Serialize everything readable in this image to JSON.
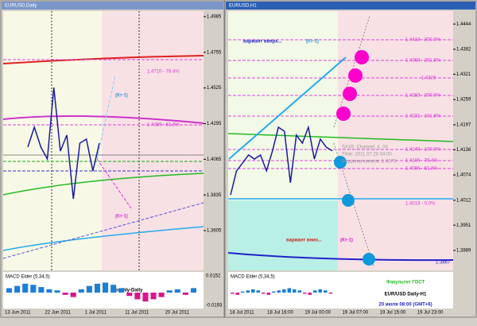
{
  "left_window": {
    "title": "EURUSD,Daily",
    "ylim": [
      1.34,
      1.5
    ],
    "yticks": [
      1.4985,
      1.4755,
      1.4525,
      1.4295,
      1.4065,
      1.3835,
      1.3605
    ],
    "price": [
      1.4144,
      1.4272,
      1.4144,
      1.4067,
      1.4528,
      1.4118,
      1.4221,
      1.381,
      1.4169,
      1.4195,
      1.399,
      1.4169
    ],
    "levels": [
      "1.4710 - 76.4%",
      "1.4389 - 61.8%"
    ],
    "annotations": [
      "(Кт-1)",
      "(Кт-1)"
    ],
    "caption": "Monthly-Daily",
    "macd_label": "MACD Elder (5,34,5)",
    "macd_ticks": [
      0.0152,
      -0.0193
    ],
    "macd": [
      0.004,
      0.006,
      0.008,
      0.007,
      0.005,
      0.003,
      0.002,
      -0.002,
      -0.004,
      0.003,
      0.006,
      0.008,
      0.009,
      0.007,
      0.004,
      -0.003,
      -0.006,
      -0.008,
      -0.006,
      -0.004,
      0.002,
      0.003,
      -0.002,
      0.004
    ],
    "dates": [
      "13 Jun 2011",
      "22 Jun 2011",
      "1 Jul 2011",
      "11 Jul 2011",
      "20 Jul 2011"
    ]
  },
  "right_window": {
    "title": "EURUSD,H1",
    "ylim": [
      1.385,
      1.446
    ],
    "yticks": [
      1.4444,
      1.4382,
      1.4321,
      1.4259,
      1.4197,
      1.4136,
      1.4074,
      1.4012,
      1.3951,
      1.3889
    ],
    "price": [
      1.4025,
      1.4084,
      1.4103,
      1.4123,
      1.4113,
      1.4123,
      1.4084,
      1.4133,
      1.4191,
      1.4181,
      1.4055,
      1.4172,
      1.4152,
      1.4191,
      1.4113,
      1.4162,
      1.4142,
      1.4133
    ],
    "levels": [
      "1.4418 - 300.0%",
      "1.4368 - 261.8%",
      "1.4326",
      "1.4283 - 200.0%",
      "1.4231 - 161.8%",
      "1.4148 - 100.0%",
      "1.4106 - 76.4%",
      "1.4096 - 61.8%",
      "1.4013 - 0.0%",
      "1.3867"
    ],
    "annotations": [
      "вариант вверх...",
      "(Кт-1)",
      "вариант вниз...",
      "(Кт-1)"
    ],
    "channel_info": [
      "SAX5_Channel_4_03",
      "Time: 2011.07.20 04:00",
      "Медиана канала: 1.4173"
    ],
    "caption": [
      "Факультет ГОСТ",
      "EUR/USD Daily-H1",
      "20 июля 08:00 (GMT+6)"
    ],
    "macd_label": "MACD Elder (5,34,5)",
    "macd": [
      -0.001,
      -0.002,
      0.001,
      0.002,
      0.003,
      0.002,
      -0.001,
      -0.002,
      0.001,
      0.002,
      0.003,
      0.004,
      0.003,
      0.002,
      -0.001,
      -0.002,
      0.002,
      0.003,
      0.002,
      -0.001
    ],
    "dates": [
      "18 Jul 2011",
      "18 Jul 16:00",
      "19 Jul 00:00",
      "19 Jul 07:00",
      "19 Jul 15:00",
      "19 Jul 23:00"
    ]
  }
}
